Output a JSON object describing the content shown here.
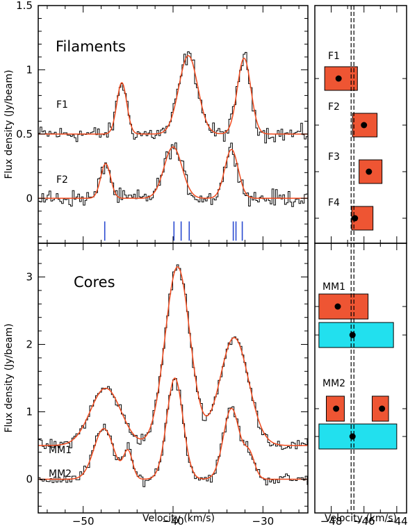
{
  "chart_data": [
    {
      "panel": "spectra-filaments",
      "type": "line",
      "label": "Filaments",
      "xlabel": "Velocity (km/s)",
      "ylabel": "Flux density (Jy/beam)",
      "xlim": [
        -55,
        -25
      ],
      "ylim": [
        -0.35,
        1.5
      ],
      "yticks": [
        0,
        0.5,
        1,
        1.5
      ],
      "ytick_labels": [
        "0",
        "0.5",
        "1",
        "1.5"
      ],
      "series": [
        {
          "name": "F1",
          "offset": 0.5,
          "fit": [
            {
              "v": -45.7,
              "amp": 0.4,
              "sigma": 0.55
            },
            {
              "v": -38.3,
              "amp": 0.61,
              "sigma": 1.05
            },
            {
              "v": -32.1,
              "amp": 0.59,
              "sigma": 0.75
            }
          ]
        },
        {
          "name": "F2",
          "offset": 0.0,
          "fit": [
            {
              "v": -47.5,
              "amp": 0.27,
              "sigma": 0.55
            },
            {
              "v": -40.0,
              "amp": 0.4,
              "sigma": 1.0
            },
            {
              "v": -33.5,
              "amp": 0.38,
              "sigma": 0.75
            }
          ]
        }
      ],
      "markers_velocity": [
        -47.6,
        -39.9,
        -39.1,
        -38.2,
        -33.3,
        -33.0,
        -32.3
      ]
    },
    {
      "panel": "spectra-cores",
      "type": "line",
      "label": "Cores",
      "xlabel": "Velocity (km/s)",
      "ylabel": "Flux density (Jy/beam)",
      "xlim": [
        -55,
        -25
      ],
      "ylim": [
        -0.5,
        3.5
      ],
      "xticks": [
        -50,
        -40,
        -30
      ],
      "xtick_labels": [
        "−50",
        "−40",
        "−30"
      ],
      "yticks": [
        0,
        1,
        2,
        3
      ],
      "ytick_labels": [
        "0",
        "1",
        "2",
        "3"
      ],
      "series": [
        {
          "name": "MM1",
          "offset": 0.5,
          "fit": [
            {
              "v": -47.5,
              "amp": 0.85,
              "sigma": 1.7
            },
            {
              "v": -39.5,
              "amp": 2.65,
              "sigma": 1.4
            },
            {
              "v": -33.2,
              "amp": 1.6,
              "sigma": 1.6
            }
          ]
        },
        {
          "name": "MM2",
          "offset": 0.0,
          "fit": [
            {
              "v": -47.7,
              "amp": 0.75,
              "sigma": 1.1
            },
            {
              "v": -45.0,
              "amp": 0.4,
              "sigma": 0.5
            },
            {
              "v": -39.8,
              "amp": 1.5,
              "sigma": 0.9
            },
            {
              "v": -33.5,
              "amp": 1.05,
              "sigma": 0.9
            },
            {
              "v": -31.5,
              "amp": 0.35,
              "sigma": 0.6
            }
          ]
        }
      ]
    },
    {
      "panel": "velocity-filaments",
      "type": "scatter",
      "xlabel": "Velocity (km/s)",
      "xlim": [
        -49,
        -43.4
      ],
      "reference_velocity": -46.7,
      "points": [
        {
          "name": "F1",
          "v": -47.55,
          "range": [
            -48.4,
            -46.4
          ],
          "color": "#ee5533"
        },
        {
          "name": "F2",
          "v": -46.0,
          "range": [
            -46.7,
            -45.2
          ],
          "color": "#ee5533"
        },
        {
          "name": "F3",
          "v": -45.7,
          "range": [
            -46.3,
            -44.9
          ],
          "color": "#ee5533"
        },
        {
          "name": "F4",
          "v": -46.55,
          "range": [
            -46.75,
            -45.45
          ],
          "color": "#ee5533"
        }
      ]
    },
    {
      "panel": "velocity-cores",
      "type": "scatter",
      "xlabel": "Velocity (km/s)",
      "xlim": [
        -49,
        -43.4
      ],
      "xticks": [
        -48,
        -46,
        -44
      ],
      "xtick_labels": [
        "−48",
        "−46",
        "−44"
      ],
      "reference_velocity": -46.7,
      "groups": [
        {
          "name": "MM1",
          "boxes": [
            {
              "v": -47.6,
              "range": [
                -48.75,
                -45.75
              ],
              "color": "#ee5533"
            },
            {
              "v": -46.7,
              "range": [
                -48.75,
                -44.2
              ],
              "color": "#22e0ee"
            }
          ]
        },
        {
          "name": "MM2",
          "boxes": [
            {
              "v": -47.7,
              "range": [
                -48.3,
                -47.2
              ],
              "color": "#ee5533"
            },
            {
              "v": -44.9,
              "range": [
                -45.5,
                -44.5
              ],
              "color": "#ee5533"
            },
            {
              "v": -46.7,
              "range": [
                -48.75,
                -44.0
              ],
              "color": "#22e0ee"
            }
          ]
        }
      ]
    }
  ]
}
